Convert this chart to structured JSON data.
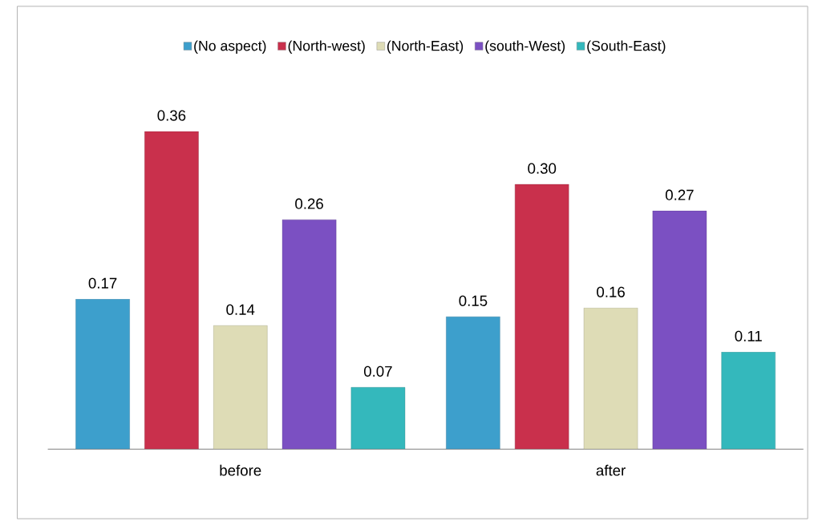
{
  "chart_data": {
    "type": "bar",
    "categories": [
      "before",
      "after"
    ],
    "series": [
      {
        "name": "(No aspect)",
        "color": "#3d9fcc",
        "values": [
          0.17,
          0.15
        ],
        "value_labels": [
          "0.17",
          "0.15"
        ]
      },
      {
        "name": "(North-west)",
        "color": "#c9304c",
        "values": [
          0.36,
          0.3
        ],
        "value_labels": [
          "0.36",
          "0.30"
        ]
      },
      {
        "name": "(North-East)",
        "color": "#dedcb6",
        "values": [
          0.14,
          0.16
        ],
        "value_labels": [
          "0.14",
          "0.16"
        ]
      },
      {
        "name": "(south-West)",
        "color": "#7b50c2",
        "values": [
          0.26,
          0.27
        ],
        "value_labels": [
          "0.26",
          "0.27"
        ]
      },
      {
        "name": "(South-East)",
        "color": "#34b8bc",
        "values": [
          0.07,
          0.11
        ],
        "value_labels": [
          "0.07",
          "0.11"
        ]
      }
    ],
    "legend": "top"
  }
}
